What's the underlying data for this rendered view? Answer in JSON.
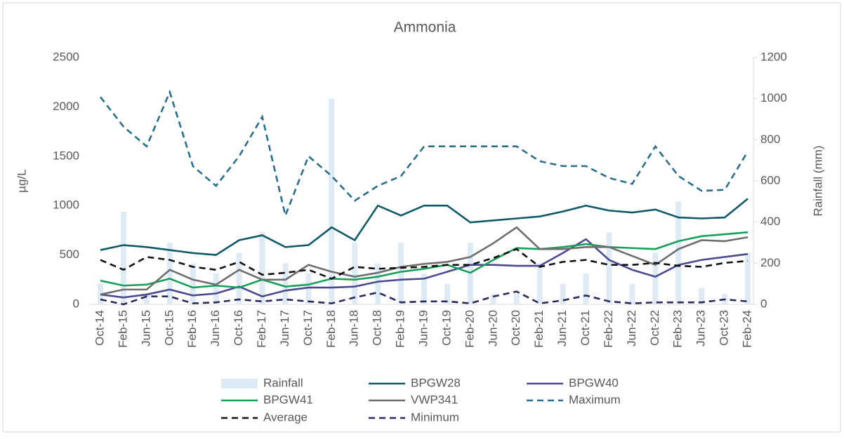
{
  "chart_data": {
    "type": "line",
    "title": "Ammonia",
    "y_label": "µg/L",
    "y2_label": "Rainfall (mm)",
    "categories": [
      "Oct-14",
      "Feb-15",
      "Jun-15",
      "Oct-15",
      "Feb-16",
      "Jun-16",
      "Oct-16",
      "Feb-17",
      "Jun-17",
      "Oct-17",
      "Feb-18",
      "Jun-18",
      "Oct-18",
      "Feb-19",
      "Jun-19",
      "Oct-19",
      "Feb-20",
      "Jun-20",
      "Oct-20",
      "Feb-21",
      "Jun-21",
      "Oct-21",
      "Feb-22",
      "Jun-22",
      "Oct-22",
      "Feb-23",
      "Jun-23",
      "Oct-23",
      "Feb-24"
    ],
    "ylim": [
      0,
      2500
    ],
    "yticks": [
      0,
      500,
      1000,
      1500,
      2000,
      2500
    ],
    "y2lim": [
      0,
      1200
    ],
    "y2ticks": [
      0,
      200,
      400,
      600,
      800,
      1000,
      1200
    ],
    "series": [
      {
        "name": "Rainfall",
        "type": "bar",
        "axis": "y2",
        "color": "#deebf5",
        "values": [
          100,
          450,
          50,
          300,
          200,
          150,
          250,
          350,
          200,
          150,
          1000,
          300,
          200,
          300,
          150,
          100,
          300,
          50,
          50,
          200,
          100,
          150,
          350,
          100,
          250,
          500,
          80,
          50,
          250
        ]
      },
      {
        "name": "BPGW28",
        "color": "#0f5968",
        "values": [
          550,
          600,
          580,
          550,
          520,
          500,
          650,
          700,
          580,
          600,
          780,
          650,
          1000,
          900,
          1000,
          1000,
          830,
          850,
          870,
          890,
          940,
          1000,
          950,
          930,
          960,
          880,
          870,
          880,
          1070
        ]
      },
      {
        "name": "BPGW40",
        "color": "#4b4a91",
        "values": [
          100,
          70,
          100,
          150,
          90,
          110,
          180,
          80,
          140,
          170,
          170,
          180,
          230,
          250,
          260,
          330,
          400,
          400,
          390,
          390,
          520,
          660,
          450,
          350,
          280,
          400,
          450,
          480,
          510
        ]
      },
      {
        "name": "BPGW41",
        "color": "#16a05a",
        "values": [
          240,
          190,
          200,
          260,
          170,
          190,
          170,
          250,
          180,
          200,
          260,
          250,
          280,
          330,
          360,
          400,
          320,
          450,
          570,
          560,
          580,
          610,
          580,
          570,
          560,
          640,
          690,
          710,
          730
        ]
      },
      {
        "name": "VWP341",
        "color": "#6e6e6e",
        "values": [
          100,
          150,
          150,
          350,
          250,
          200,
          350,
          250,
          250,
          400,
          330,
          280,
          320,
          380,
          410,
          430,
          480,
          620,
          780,
          560,
          560,
          580,
          580,
          490,
          400,
          560,
          650,
          640,
          680
        ]
      },
      {
        "name": "Maximum",
        "color": "#2a6e8c",
        "dashed": true,
        "values": [
          2100,
          1800,
          1600,
          2150,
          1400,
          1200,
          1500,
          1900,
          900,
          1500,
          1300,
          1050,
          1200,
          1300,
          1600,
          1600,
          1600,
          1600,
          1600,
          1450,
          1400,
          1400,
          1280,
          1220,
          1600,
          1300,
          1150,
          1160,
          1550
        ]
      },
      {
        "name": "Average",
        "color": "#111111",
        "dashed": true,
        "values": [
          450,
          350,
          480,
          450,
          380,
          350,
          430,
          300,
          320,
          350,
          260,
          380,
          360,
          370,
          380,
          400,
          400,
          470,
          560,
          380,
          430,
          450,
          400,
          400,
          420,
          390,
          380,
          420,
          440
        ]
      },
      {
        "name": "Minimum",
        "color": "#2a2a5e",
        "dashed": true,
        "values": [
          50,
          0,
          80,
          80,
          10,
          20,
          50,
          30,
          50,
          30,
          10,
          70,
          120,
          20,
          30,
          30,
          10,
          80,
          130,
          10,
          40,
          90,
          30,
          10,
          20,
          20,
          20,
          50,
          30
        ]
      }
    ]
  }
}
